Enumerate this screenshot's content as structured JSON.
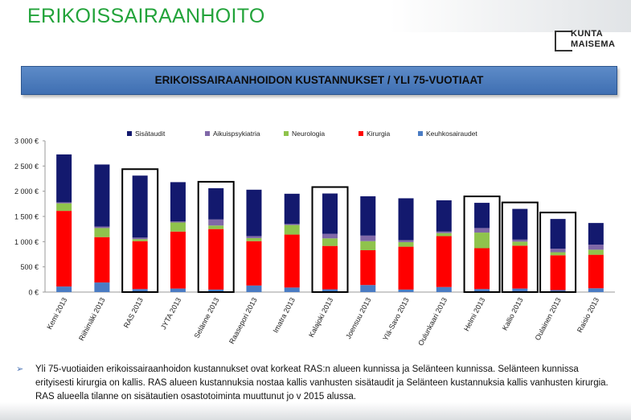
{
  "header": {
    "title": "ERIKOISSAIRAANHOITO",
    "logo_line1": "KUNTA",
    "logo_line2": "MAISEMA"
  },
  "banner": {
    "text": "ERIKOISSAIRAANHOIDON KUSTANNUKSET / YLI 75-VUOTIAAT"
  },
  "colors": {
    "title": "#22a33a",
    "banner": "#4a7cbf",
    "sisataudit": "#13196e",
    "aikuispsykiatria": "#8068a8",
    "neurologia": "#8fc34c",
    "kirurgia": "#ff0000",
    "keuhkosairaudet": "#4a7cc4"
  },
  "chart_data": {
    "type": "bar",
    "stacked": true,
    "categories": [
      "Kemi 2013",
      "Riihimäki 2013",
      "RAS 2013",
      "JYTA 2013",
      "Selänne 2013",
      "Raasepori 2013",
      "Imatra 2013",
      "Kalajoki 2013",
      "Joensuu 2013",
      "Ylä-Savo 2013",
      "Oulunkaari 2013",
      "Helmi 2013",
      "Kallio 2013",
      "Oulainen 2013",
      "Raisio 2013"
    ],
    "highlighted": [
      "RAS 2013",
      "Selänne 2013",
      "Kalajoki 2013",
      "Helmi 2013",
      "Kallio 2013",
      "Oulainen 2013"
    ],
    "series": [
      {
        "name": "Keuhkosairaudet",
        "color": "#4a7cc4",
        "values": [
          110,
          190,
          60,
          70,
          50,
          130,
          90,
          55,
          140,
          50,
          100,
          60,
          70,
          40,
          75
        ]
      },
      {
        "name": "Kirurgia",
        "color": "#ff0000",
        "values": [
          1500,
          900,
          950,
          1130,
          1200,
          880,
          1050,
          860,
          690,
          850,
          1010,
          810,
          850,
          690,
          665
        ]
      },
      {
        "name": "Neurologia",
        "color": "#8fc34c",
        "values": [
          150,
          180,
          40,
          180,
          70,
          60,
          190,
          150,
          180,
          90,
          60,
          310,
          80,
          60,
          100
        ]
      },
      {
        "name": "Aikuispsykiatria",
        "color": "#8068a8",
        "values": [
          20,
          30,
          30,
          20,
          120,
          40,
          20,
          90,
          110,
          40,
          30,
          90,
          40,
          70,
          100
        ]
      },
      {
        "name": "Sisätaudit",
        "color": "#13196e",
        "values": [
          950,
          1230,
          1230,
          780,
          620,
          920,
          600,
          800,
          780,
          830,
          620,
          500,
          610,
          590,
          430
        ]
      }
    ],
    "legend_order": [
      "Sisätaudit",
      "Aikuispsykiatria",
      "Neurologia",
      "Kirurgia",
      "Keuhkosairaudet"
    ],
    "yticks": [
      "0 €",
      "500 €",
      "1 000 €",
      "1 500 €",
      "2 000 €",
      "2 500 €",
      "3 000 €"
    ],
    "ylim": [
      0,
      3000
    ],
    "legend_position": "top"
  },
  "footnote": {
    "bullet": "➢",
    "text": "Yli 75-vuotiaiden erikoissairaanhoidon kustannukset ovat korkeat RAS:n alueen kunnissa ja Selänteen kunnissa. Selänteen kunnissa erityisesti kirurgia on kallis. RAS alueen kustannuksia nostaa kallis vanhusten sisätaudit ja Selänteen kustannuksia kallis vanhusten kirurgia. RAS alueella tilanne on sisätautien osastotoiminta muuttunut jo v 2015 alussa."
  }
}
